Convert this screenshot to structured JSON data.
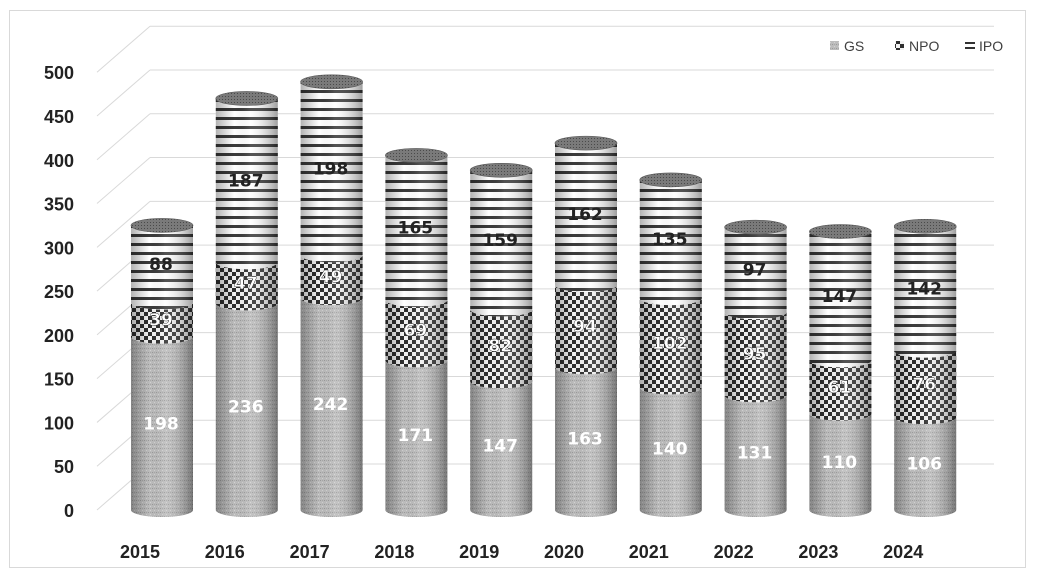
{
  "chart_data": {
    "type": "bar",
    "stacked": true,
    "style": "3d-cylinder",
    "title": "",
    "xlabel": "",
    "ylabel": "",
    "categories": [
      "2015",
      "2016",
      "2017",
      "2018",
      "2019",
      "2020",
      "2021",
      "2022",
      "2023",
      "2024"
    ],
    "series": [
      {
        "name": "GS",
        "values": [
          198,
          236,
          242,
          171,
          147,
          163,
          140,
          131,
          110,
          106
        ],
        "pattern": "fine-grey",
        "color": "#b8b8b8"
      },
      {
        "name": "NPO",
        "values": [
          39,
          47,
          49,
          69,
          82,
          94,
          102,
          95,
          61,
          76
        ],
        "pattern": "checker",
        "color": "#3a3a3a"
      },
      {
        "name": "IPO",
        "values": [
          88,
          187,
          198,
          165,
          159,
          162,
          135,
          97,
          147,
          142
        ],
        "pattern": "horizontal-lines",
        "color": "#ffffff"
      }
    ],
    "ylim": [
      0,
      500
    ],
    "yticks": [
      "0",
      "50",
      "100",
      "150",
      "200",
      "250",
      "300",
      "350",
      "400",
      "450",
      "500"
    ],
    "grid": true,
    "legend_position": "top-right"
  }
}
